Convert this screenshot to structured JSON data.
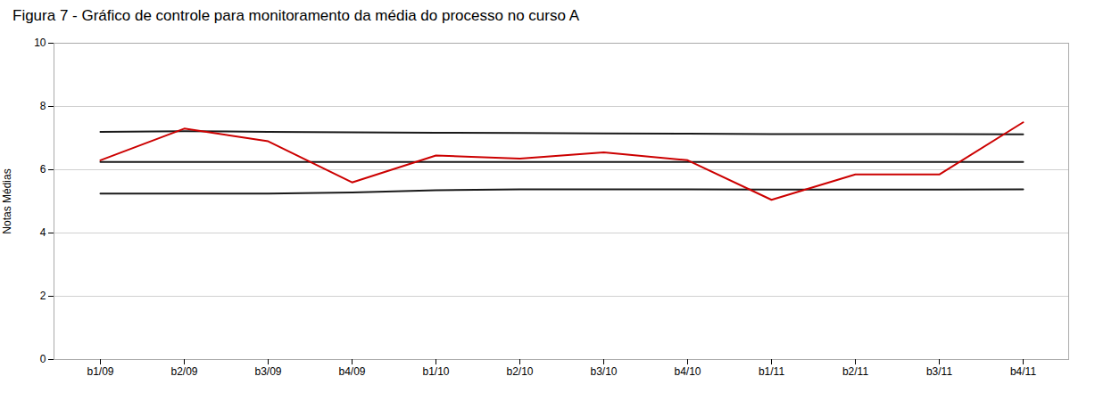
{
  "chart_data": {
    "type": "line",
    "title": "Figura 7 - Gráfico de controle para monitoramento da média do processo no curso A",
    "ylabel": "Notas Médias",
    "categories": [
      "b1/09",
      "b2/09",
      "b3/09",
      "b4/09",
      "b1/10",
      "b2/10",
      "b3/10",
      "b4/10",
      "b1/11",
      "b2/11",
      "b3/11",
      "b4/11"
    ],
    "series": [
      {
        "color": "#1a1a1a",
        "values": [
          7.2,
          7.22,
          7.2,
          7.18,
          7.17,
          7.16,
          7.15,
          7.14,
          7.13,
          7.13,
          7.13,
          7.12
        ]
      },
      {
        "color": "#1a1a1a",
        "values": [
          6.25,
          6.25,
          6.25,
          6.25,
          6.25,
          6.25,
          6.25,
          6.25,
          6.25,
          6.25,
          6.25,
          6.25
        ]
      },
      {
        "color": "#1a1a1a",
        "values": [
          5.25,
          5.25,
          5.25,
          5.28,
          5.35,
          5.38,
          5.38,
          5.38,
          5.37,
          5.37,
          5.37,
          5.38
        ]
      },
      {
        "color": "#cc0000",
        "values": [
          6.3,
          7.3,
          6.9,
          5.6,
          6.45,
          6.35,
          6.55,
          6.3,
          5.05,
          5.85,
          5.85,
          7.5
        ]
      }
    ],
    "ylim": [
      0,
      10
    ],
    "yticks": [
      0,
      2,
      4,
      6,
      8,
      10
    ],
    "grid": true
  }
}
